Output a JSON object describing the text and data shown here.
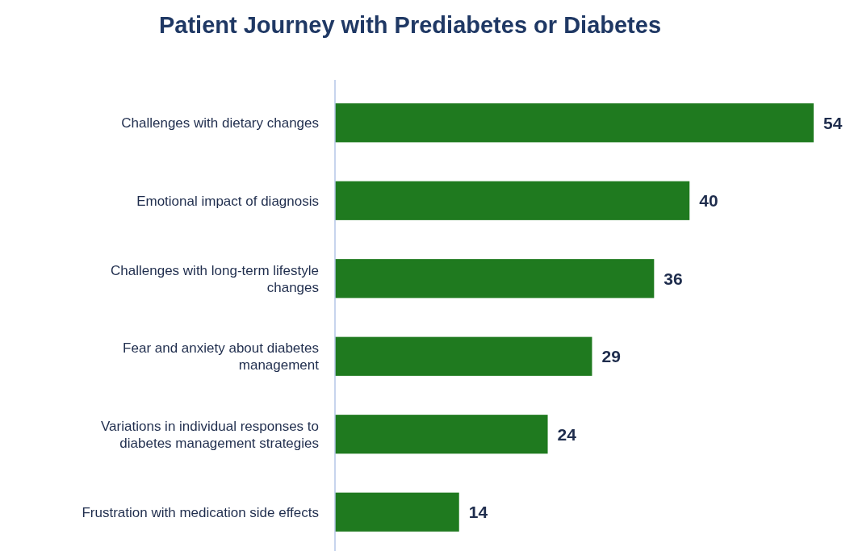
{
  "chart_data": {
    "type": "bar",
    "orientation": "horizontal",
    "title": "Patient Journey with Prediabetes or Diabetes",
    "categories": [
      "Challenges with dietary changes",
      "Emotional impact of diagnosis",
      "Challenges with long-term lifestyle changes",
      "Fear and anxiety about diabetes management",
      "Variations in individual responses to diabetes management strategies",
      "Frustration with medication side effects"
    ],
    "values": [
      54,
      40,
      36,
      29,
      24,
      14
    ],
    "color": "#1f7a1f",
    "data_labels": true
  }
}
